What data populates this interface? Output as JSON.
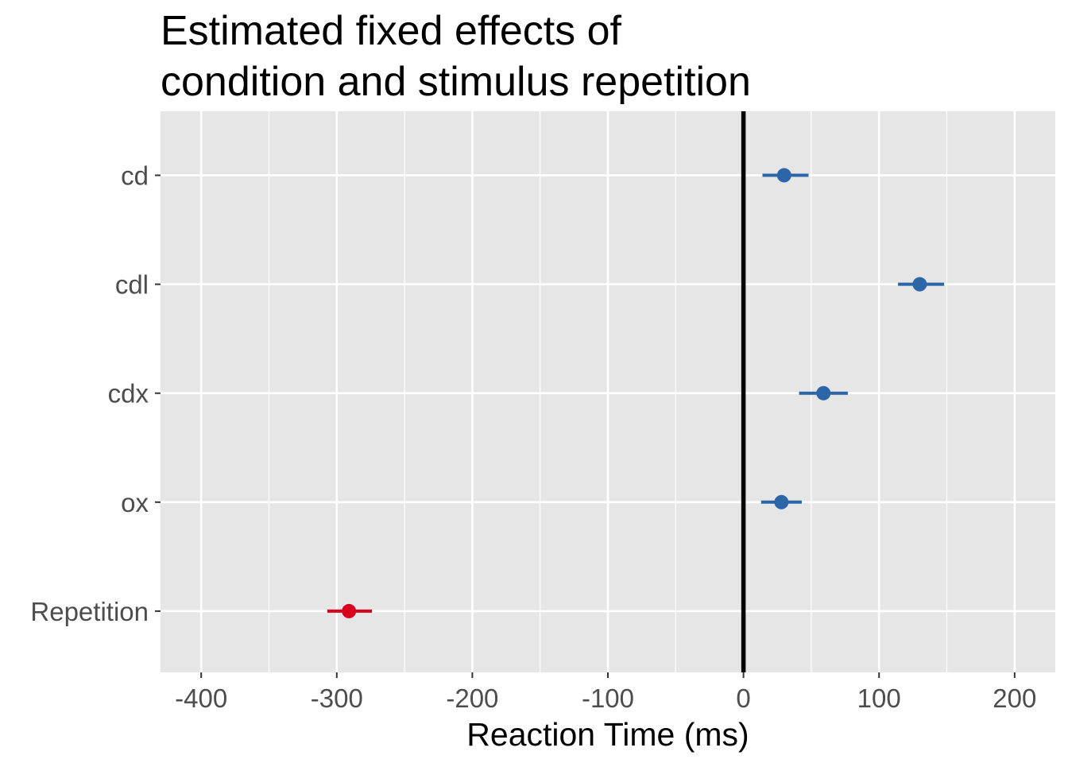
{
  "chart_data": {
    "type": "scatter",
    "title_lines": [
      "Estimated fixed effects of",
      "condition and stimulus repetition"
    ],
    "xlabel": "Reaction Time (ms)",
    "ylabel": "",
    "xlim": [
      -430,
      230
    ],
    "x_ticks": [
      -400,
      -300,
      -200,
      -100,
      0,
      100,
      200
    ],
    "x_tick_labels": [
      "-400",
      "-300",
      "-200",
      "-100",
      "0",
      "100",
      "200"
    ],
    "grid": true,
    "reference_line_x": 0,
    "categories": [
      "cd",
      "cdl",
      "cdx",
      "ox",
      "Repetition"
    ],
    "points": [
      {
        "label": "cd",
        "estimate": 30,
        "ci_low": 14,
        "ci_high": 48,
        "color": "#2c66a8"
      },
      {
        "label": "cdl",
        "estimate": 130,
        "ci_low": 114,
        "ci_high": 148,
        "color": "#2c66a8"
      },
      {
        "label": "cdx",
        "estimate": 59,
        "ci_low": 41,
        "ci_high": 77,
        "color": "#2c66a8"
      },
      {
        "label": "ox",
        "estimate": 28,
        "ci_low": 13,
        "ci_high": 43,
        "color": "#2c66a8"
      },
      {
        "label": "Repetition",
        "estimate": -291,
        "ci_low": -307,
        "ci_high": -274,
        "color": "#d7001e"
      }
    ],
    "panel_background": "#e6e6e6",
    "grid_color": "#ffffff"
  }
}
